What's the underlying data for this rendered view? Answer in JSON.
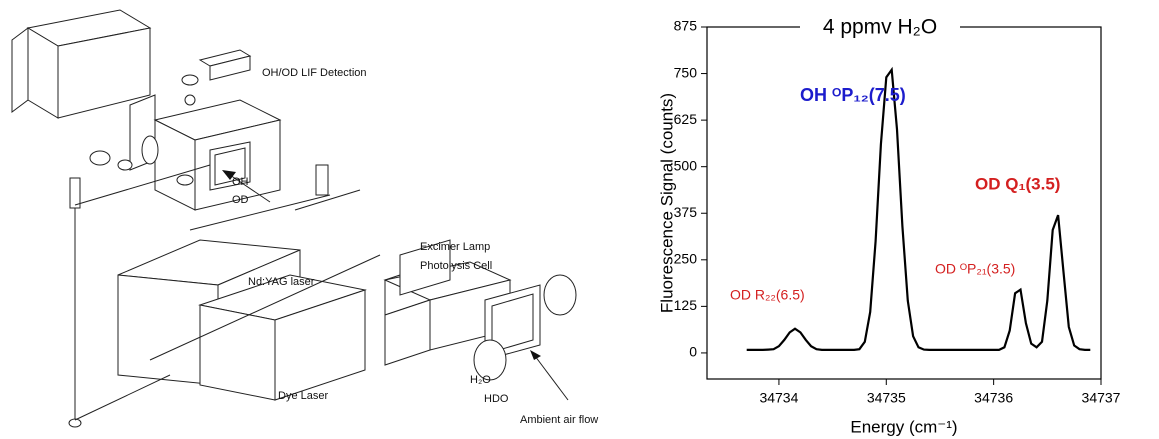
{
  "diagram": {
    "labels": [
      "OH/OD LIF Detection",
      "OH",
      "OD",
      "Nd:YAG laser",
      "Dye Laser",
      "Excimer Lamp",
      "Photolysis Cell",
      "H₂O",
      "HDO",
      "Ambient air flow"
    ]
  },
  "chart_data": {
    "type": "line",
    "title": "4 ppmv H₂O",
    "x_label": "Energy (cm⁻¹)",
    "y_label": "Fluorescence Signal (counts)",
    "color": "#000000",
    "x": [
      34733.7,
      34733.75,
      34733.8,
      34733.85,
      34733.9,
      34733.95,
      34734.0,
      34734.05,
      34734.1,
      34734.15,
      34734.2,
      34734.25,
      34734.3,
      34734.35,
      34734.4,
      34734.45,
      34734.5,
      34734.55,
      34734.6,
      34734.65,
      34734.7,
      34734.75,
      34734.8,
      34734.85,
      34734.9,
      34734.95,
      34735.0,
      34735.05,
      34735.1,
      34735.15,
      34735.2,
      34735.25,
      34735.3,
      34735.35,
      34735.4,
      34735.45,
      34735.5,
      34735.55,
      34735.6,
      34735.65,
      34735.7,
      34735.75,
      34735.8,
      34735.85,
      34735.9,
      34735.95,
      34736.0,
      34736.05,
      34736.1,
      34736.15,
      34736.2,
      34736.25,
      34736.3,
      34736.35,
      34736.4,
      34736.45,
      34736.5,
      34736.55,
      34736.6,
      34736.65,
      34736.7,
      34736.75,
      34736.8,
      34736.85,
      34736.9
    ],
    "values": [
      8,
      8,
      8,
      8,
      9,
      10,
      18,
      35,
      55,
      65,
      55,
      35,
      18,
      10,
      8,
      8,
      8,
      8,
      8,
      8,
      8,
      10,
      30,
      110,
      300,
      560,
      740,
      760,
      600,
      340,
      140,
      45,
      15,
      9,
      8,
      8,
      8,
      8,
      8,
      8,
      8,
      8,
      8,
      8,
      8,
      8,
      8,
      8,
      15,
      60,
      160,
      170,
      80,
      25,
      15,
      30,
      140,
      330,
      370,
      220,
      70,
      20,
      10,
      8,
      8
    ],
    "xlim": [
      34733.33,
      34737
    ],
    "xticks": [
      34734,
      34735,
      34736,
      34737
    ],
    "ylim": [
      -70,
      875
    ],
    "yticks": [
      0,
      125,
      250,
      375,
      500,
      625,
      750,
      875
    ],
    "annotations": [
      {
        "text": "OH ᴼP₁₂(7.5)",
        "color": "#1c1ccc"
      },
      {
        "text": "OD Q₁(3.5)",
        "color": "#d42020"
      },
      {
        "text": "OD ᴼP₂₁(3.5)",
        "color": "#d42020"
      },
      {
        "text": "OD R₂₂(6.5)",
        "color": "#d42020"
      }
    ]
  }
}
